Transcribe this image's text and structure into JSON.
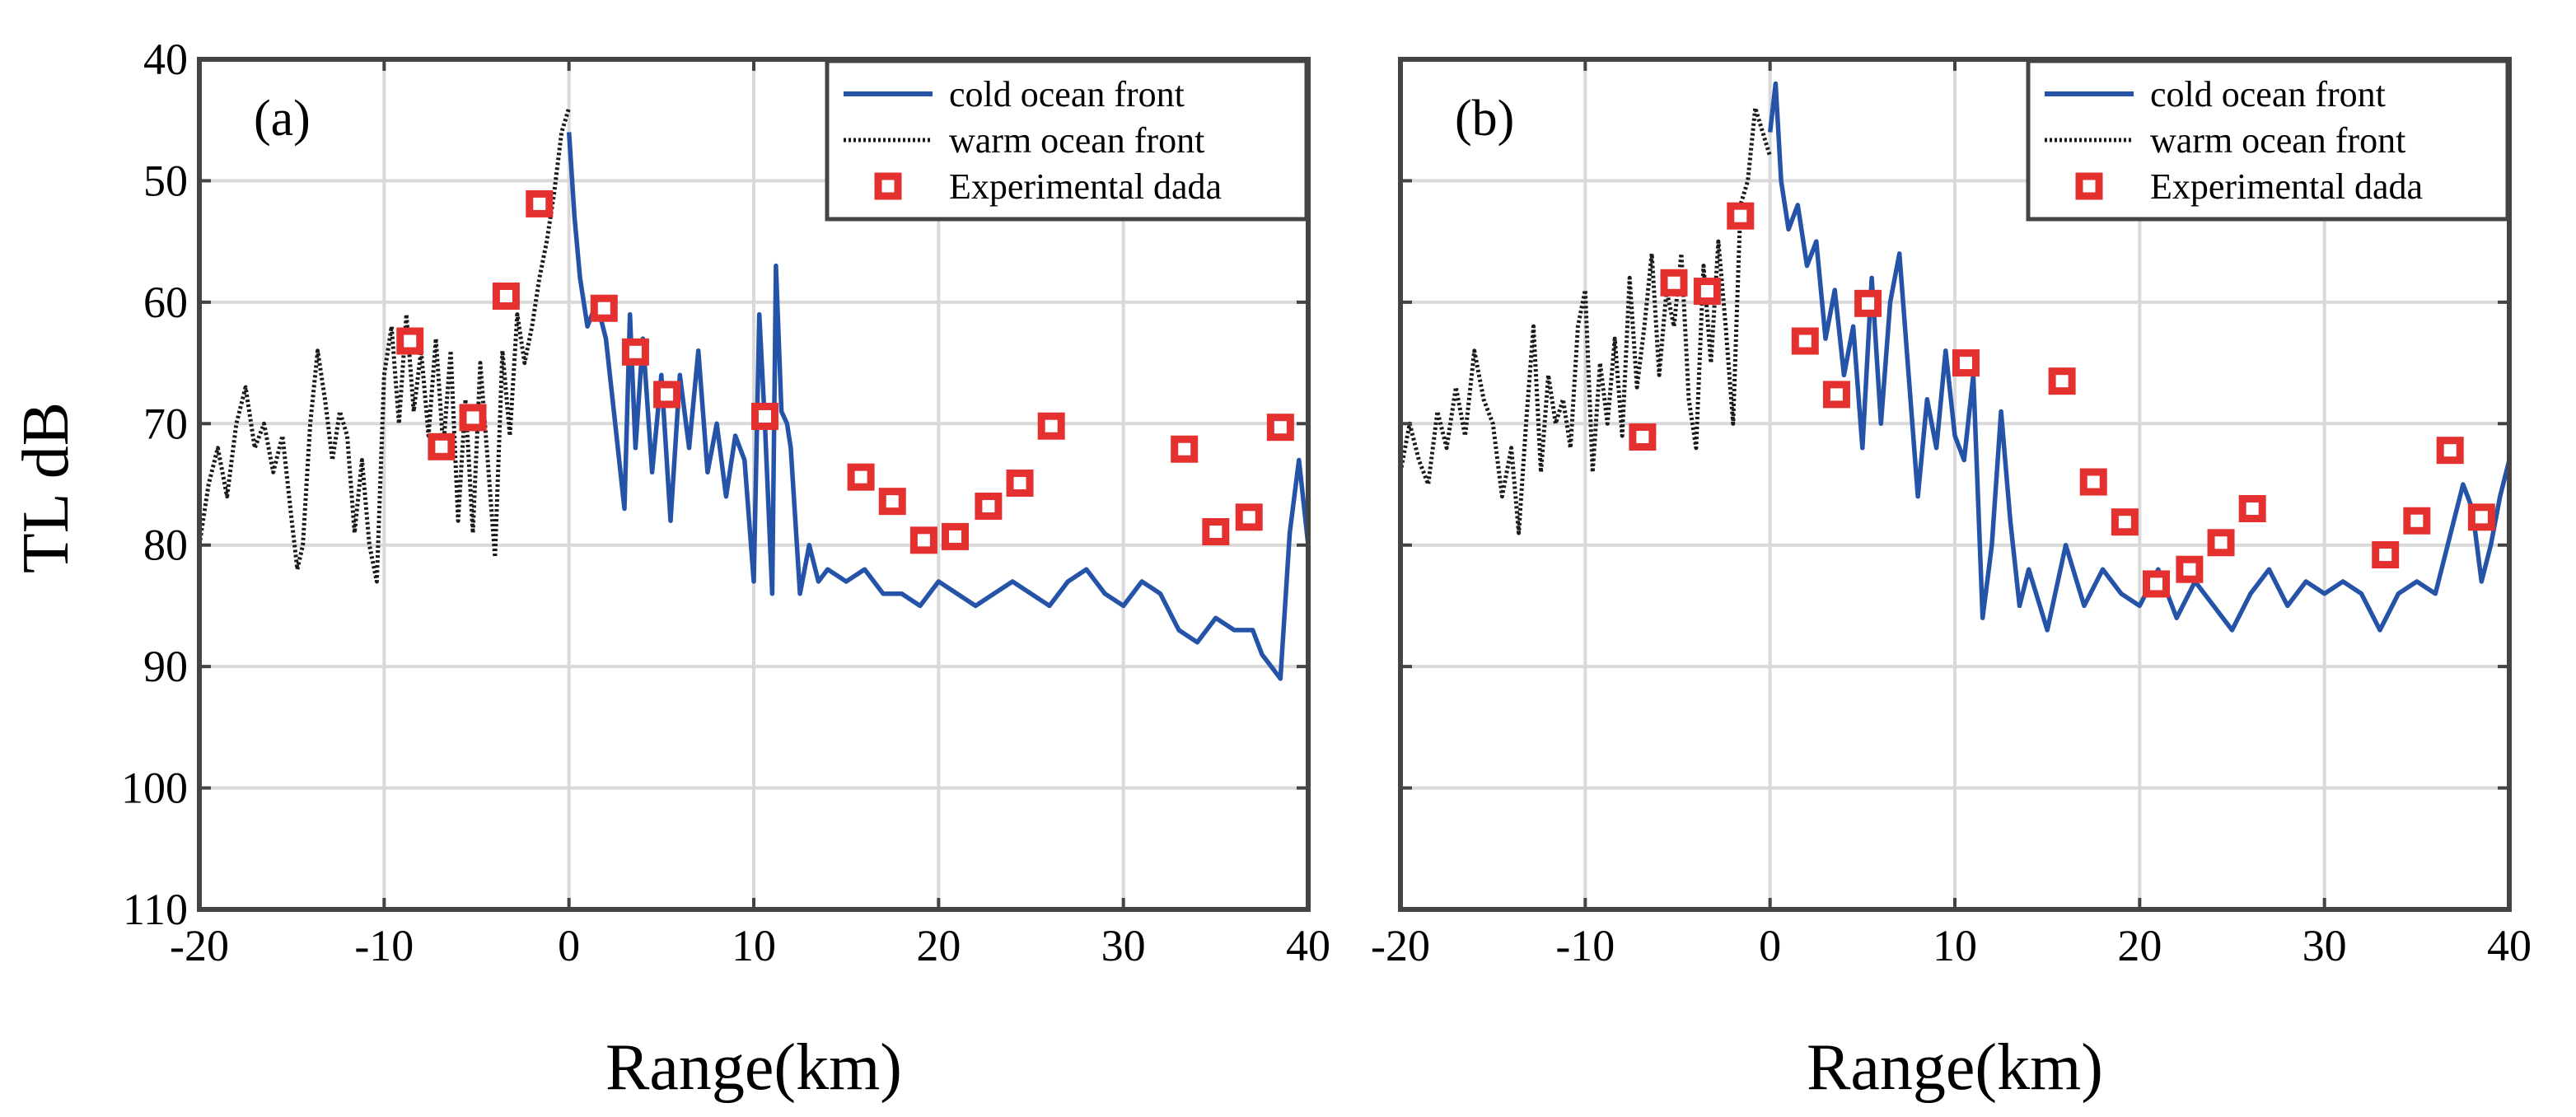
{
  "ylabel": "TL dB",
  "legend": {
    "cold": "cold ocean front",
    "warm": "warm ocean front",
    "exp": "Experimental dada"
  },
  "colors": {
    "cold": "#2453a8",
    "warm": "#1a1a1a",
    "exp": "#e53030",
    "grid": "#d9d9d9",
    "frame": "#444444"
  },
  "chart_data": [
    {
      "type": "line",
      "panel_label": "(a)",
      "xlabel": "Range(km)",
      "xlim": [
        -20,
        40
      ],
      "ylim": [
        40,
        110
      ],
      "y_reversed": true,
      "xticks": [
        -20,
        -10,
        0,
        10,
        20,
        30,
        40
      ],
      "yticks": [
        40,
        50,
        60,
        70,
        80,
        90,
        100,
        110
      ],
      "grid": true,
      "legend_position": "top-right",
      "series": [
        {
          "name": "warm ocean front",
          "style": "dotted",
          "x": [
            -20,
            -19.5,
            -19,
            -18.5,
            -18,
            -17.5,
            -17,
            -16.5,
            -16,
            -15.5,
            -15,
            -14.7,
            -14.4,
            -14,
            -13.6,
            -13.2,
            -12.8,
            -12.4,
            -12,
            -11.6,
            -11.2,
            -10.8,
            -10.4,
            -10,
            -9.6,
            -9.2,
            -8.8,
            -8.4,
            -8,
            -7.6,
            -7.2,
            -6.8,
            -6.4,
            -6,
            -5.6,
            -5.2,
            -4.8,
            -4.4,
            -4,
            -3.6,
            -3.2,
            -2.8,
            -2.4,
            -2,
            -1.6,
            -1.2,
            -0.8,
            -0.4,
            0
          ],
          "y": [
            80,
            75,
            72,
            76,
            70,
            67,
            72,
            70,
            74,
            71,
            78,
            82,
            80,
            70,
            64,
            68,
            73,
            69,
            71,
            79,
            73,
            80,
            83,
            66,
            62,
            70,
            61,
            69,
            64,
            71,
            63,
            72,
            64,
            78,
            68,
            79,
            65,
            73,
            81,
            64,
            71,
            61,
            65,
            62,
            58,
            55,
            51,
            46,
            44
          ]
        },
        {
          "name": "cold ocean front",
          "style": "solid",
          "x": [
            0,
            0.3,
            0.6,
            1,
            1.5,
            2,
            2.5,
            3,
            3.3,
            3.6,
            4,
            4.5,
            5,
            5.5,
            6,
            6.5,
            7,
            7.5,
            8,
            8.5,
            9,
            9.5,
            10,
            10.3,
            10.6,
            11,
            11.2,
            11.5,
            11.8,
            12,
            12.5,
            13,
            13.5,
            14,
            15,
            16,
            17,
            18,
            19,
            20,
            21,
            22,
            23,
            24,
            25,
            26,
            27,
            28,
            29,
            30,
            31,
            32,
            33,
            34,
            35,
            36,
            37,
            37.5,
            38,
            38.5,
            39,
            39.5,
            40
          ],
          "y": [
            46,
            53,
            58,
            62,
            60,
            63,
            70,
            77,
            61,
            72,
            63,
            74,
            66,
            78,
            66,
            72,
            64,
            74,
            70,
            76,
            71,
            73,
            83,
            61,
            70,
            84,
            57,
            69,
            70,
            72,
            84,
            80,
            83,
            82,
            83,
            82,
            84,
            84,
            85,
            83,
            84,
            85,
            84,
            83,
            84,
            85,
            83,
            82,
            84,
            85,
            83,
            84,
            87,
            88,
            86,
            87,
            87,
            89,
            90,
            91,
            79,
            73,
            80
          ]
        },
        {
          "name": "Experimental dada",
          "style": "markers",
          "x": [
            -8.6,
            -6.9,
            -5.2,
            -3.4,
            -1.6,
            1.9,
            3.6,
            5.3,
            10.6,
            15.8,
            17.5,
            19.2,
            20.9,
            22.7,
            24.4,
            26.1,
            33.3,
            35,
            36.8,
            38.5
          ],
          "y": [
            63.2,
            71.9,
            69.5,
            59.5,
            51.9,
            60.5,
            64.1,
            67.6,
            69.4,
            74.4,
            76.4,
            79.6,
            79.3,
            76.8,
            74.9,
            70.2,
            72.1,
            78.9,
            77.7,
            70.3
          ]
        }
      ]
    },
    {
      "type": "line",
      "panel_label": "(b)",
      "xlabel": "Range(km)",
      "xlim": [
        -20,
        40
      ],
      "ylim": [
        40,
        110
      ],
      "y_reversed": true,
      "xticks": [
        -20,
        -10,
        0,
        10,
        20,
        30,
        40
      ],
      "yticks": [
        40,
        50,
        60,
        70,
        80,
        90,
        100,
        110
      ],
      "grid": true,
      "legend_position": "top-right",
      "series": [
        {
          "name": "warm ocean front",
          "style": "dotted",
          "x": [
            -20,
            -19.5,
            -19,
            -18.5,
            -18,
            -17.5,
            -17,
            -16.5,
            -16,
            -15.5,
            -15,
            -14.5,
            -14,
            -13.6,
            -13.2,
            -12.8,
            -12.4,
            -12,
            -11.6,
            -11.2,
            -10.8,
            -10.4,
            -10,
            -9.6,
            -9.2,
            -8.8,
            -8.4,
            -8,
            -7.6,
            -7.2,
            -6.8,
            -6.4,
            -6,
            -5.6,
            -5.2,
            -4.8,
            -4.4,
            -4,
            -3.6,
            -3.2,
            -2.8,
            -2.4,
            -2,
            -1.6,
            -1.2,
            -0.8,
            -0.4,
            0
          ],
          "y": [
            74,
            70,
            73,
            75,
            69,
            72,
            67,
            71,
            64,
            68,
            70,
            76,
            72,
            79,
            70,
            62,
            74,
            66,
            70,
            68,
            72,
            62,
            59,
            74,
            65,
            70,
            63,
            71,
            58,
            67,
            62,
            56,
            66,
            59,
            62,
            56,
            68,
            72,
            57,
            65,
            55,
            62,
            70,
            52,
            50,
            44,
            46,
            48
          ]
        },
        {
          "name": "cold ocean front",
          "style": "solid",
          "x": [
            0,
            0.3,
            0.6,
            1,
            1.5,
            2,
            2.5,
            3,
            3.5,
            4,
            4.5,
            5,
            5.5,
            6,
            6.5,
            7,
            7.5,
            8,
            8.5,
            9,
            9.5,
            10,
            10.5,
            11,
            11.5,
            12,
            12.5,
            13,
            13.5,
            14,
            15,
            16,
            17,
            18,
            19,
            20,
            21,
            22,
            23,
            24,
            25,
            26,
            27,
            28,
            29,
            30,
            31,
            32,
            33,
            34,
            35,
            36,
            37,
            37.5,
            38,
            38.5,
            39,
            39.5,
            40
          ],
          "y": [
            46,
            42,
            50,
            54,
            52,
            57,
            55,
            63,
            59,
            66,
            62,
            72,
            58,
            70,
            60,
            56,
            66,
            76,
            68,
            72,
            64,
            71,
            73,
            66,
            86,
            80,
            69,
            78,
            85,
            82,
            87,
            80,
            85,
            82,
            84,
            85,
            82,
            86,
            83,
            85,
            87,
            84,
            82,
            85,
            83,
            84,
            83,
            84,
            87,
            84,
            83,
            84,
            78,
            75,
            77,
            83,
            80,
            76,
            73
          ]
        },
        {
          "name": "Experimental dada",
          "style": "markers",
          "x": [
            -6.9,
            -5.2,
            -3.4,
            -1.6,
            1.9,
            3.6,
            5.3,
            10.6,
            15.8,
            17.5,
            19.2,
            20.9,
            22.7,
            24.4,
            26.1,
            33.3,
            35,
            36.8,
            38.5
          ],
          "y": [
            71.1,
            58.4,
            59.1,
            52.9,
            63.2,
            67.6,
            60.1,
            65,
            66.5,
            74.8,
            78.1,
            83.2,
            82,
            79.8,
            77,
            80.8,
            78,
            72.2,
            77.7
          ]
        }
      ]
    }
  ]
}
